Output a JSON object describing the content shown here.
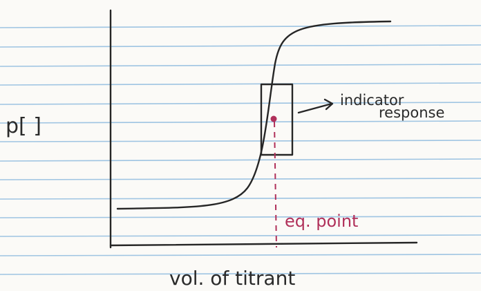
{
  "y_axis_label": "p[ ]",
  "x_axis_label": "vol. of titrant",
  "annotations": {
    "indicator": [
      "indicator",
      "response"
    ],
    "equivalence": "eq. point"
  }
}
